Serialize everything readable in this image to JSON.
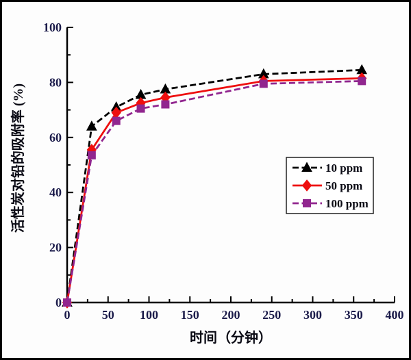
{
  "frame": {
    "background_color": "#fdfdfd",
    "border_color": "#000000"
  },
  "colors": {
    "axis": "#000000",
    "tick_label": "#1b1b4a",
    "series_10ppm": "#000000",
    "series_50ppm": "#ee0e0e",
    "series_100ppm": "#91268f",
    "legend_border": "#222222",
    "legend_background": "#ffffff"
  },
  "chart_data": {
    "type": "line",
    "title": "",
    "xlabel": "时间（分钟）",
    "ylabel": "活性炭对铅的吸附率 (%)",
    "xlim": [
      0,
      400
    ],
    "ylim": [
      0,
      100
    ],
    "x_major_ticks": [
      0,
      50,
      100,
      150,
      200,
      250,
      300,
      350,
      400
    ],
    "x_minor_step": 25,
    "y_major_ticks": [
      0,
      20,
      40,
      60,
      80,
      100
    ],
    "y_minor_step": 10,
    "grid": false,
    "legend_position": "right-middle",
    "x": [
      0,
      30,
      60,
      90,
      120,
      240,
      360
    ],
    "series": [
      {
        "name": "10 ppm",
        "color": "#000000",
        "marker": "triangle",
        "line_style": "dashed",
        "values": [
          0,
          64,
          71,
          75.5,
          77.5,
          83,
          84.5
        ]
      },
      {
        "name": "50 ppm",
        "color": "#ee0e0e",
        "marker": "diamond",
        "line_style": "solid",
        "values": [
          0,
          55.5,
          69,
          72.5,
          74.5,
          80.5,
          81.5
        ]
      },
      {
        "name": "100 ppm",
        "color": "#91268f",
        "marker": "square",
        "line_style": "dashed",
        "values": [
          0,
          53.5,
          66,
          70.5,
          72,
          79.5,
          80.5
        ]
      }
    ]
  }
}
